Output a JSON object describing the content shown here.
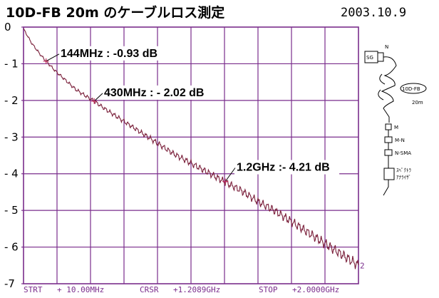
{
  "header": {
    "title": "10D-FB 20m のケーブルロス測定",
    "date": "2003.10.9"
  },
  "colors": {
    "grid": "#7a2d8c",
    "trace": "#7a1f3a",
    "text": "#000000"
  },
  "footer": {
    "start_label": "STRT",
    "start_value": "+ 10.00MHz",
    "cursor_label": "CRSR",
    "cursor_value": "+1.2089GHz",
    "stop_label": "STOP",
    "stop_value": "+2.0000GHz"
  },
  "chart_data": {
    "type": "line",
    "x_unit": "MHz",
    "y_unit": "dB",
    "xlim": [
      10,
      2000
    ],
    "ylim": [
      -7,
      0
    ],
    "yticks": [
      "0",
      "- 1",
      "- 2",
      "- 3",
      "- 4",
      "- 5",
      "- 6",
      "-7"
    ],
    "trace_end_label": "2",
    "series": [
      {
        "x": [
          10,
          60,
          110,
          144,
          200,
          260,
          320,
          380,
          430,
          500,
          600,
          700,
          800,
          900,
          1000,
          1100,
          1200,
          1300,
          1400,
          1500,
          1600,
          1700,
          1800,
          1900,
          2000
        ],
        "y": [
          -0.05,
          -0.45,
          -0.75,
          -0.93,
          -1.2,
          -1.45,
          -1.7,
          -1.88,
          -2.02,
          -2.25,
          -2.55,
          -2.85,
          -3.15,
          -3.45,
          -3.7,
          -3.95,
          -4.21,
          -4.45,
          -4.75,
          -5.0,
          -5.3,
          -5.6,
          -5.9,
          -6.2,
          -6.5
        ]
      }
    ],
    "markers": [
      {
        "x": 144,
        "y": -0.93,
        "label": "144MHz : -0.93 dB"
      },
      {
        "x": 430,
        "y": -2.02,
        "label": "430MHz : - 2.02 dB"
      },
      {
        "x": 1208.9,
        "y": -4.21,
        "label": "1.2GHz :- 4.21 dB"
      }
    ]
  },
  "setup_diagram": {
    "sg_label": "SG",
    "n_label": "N",
    "cable_label": "10D-FB",
    "length_label": "20m",
    "m_label": "M",
    "mn_label": "M-N",
    "nsma_label": "N-SMA",
    "detector_label_1": "ｽﾍﾟｸﾄﾗ",
    "detector_label_2": "ｱﾅﾗｲｻﾞ"
  }
}
